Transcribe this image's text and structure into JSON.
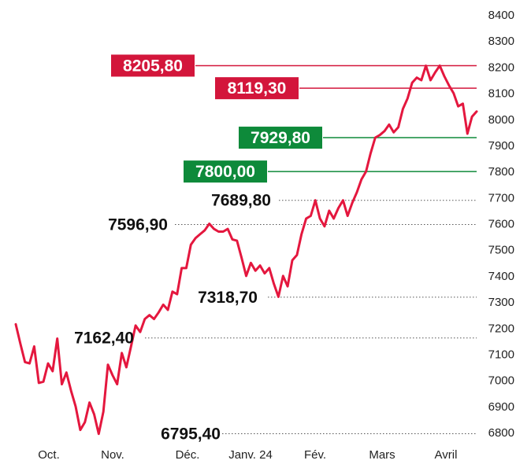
{
  "chart_data": {
    "type": "line",
    "title": "",
    "xlabel": "",
    "ylabel": "",
    "ylim": [
      6780,
      8420
    ],
    "y_ticks": [
      6800,
      6900,
      7000,
      7100,
      7200,
      7300,
      7400,
      7500,
      7600,
      7700,
      7800,
      7900,
      8000,
      8100,
      8200,
      8300,
      8400
    ],
    "x_tick_labels": [
      "Oct.",
      "Nov.",
      "Déc.",
      "Janv. 24",
      "Fév.",
      "Mars",
      "Avril"
    ],
    "grid": false,
    "line_color": "#e4173e",
    "series": [
      {
        "values": [
          7215,
          7140,
          7070,
          7065,
          7130,
          6990,
          6995,
          7065,
          7035,
          7160,
          6985,
          7030,
          6960,
          6900,
          6810,
          6840,
          6915,
          6870,
          6795,
          6880,
          7060,
          7020,
          6985,
          7105,
          7050,
          7130,
          7210,
          7185,
          7235,
          7250,
          7235,
          7260,
          7290,
          7270,
          7340,
          7330,
          7430,
          7430,
          7520,
          7545,
          7560,
          7575,
          7600,
          7580,
          7570,
          7570,
          7580,
          7540,
          7535,
          7470,
          7400,
          7450,
          7420,
          7440,
          7410,
          7430,
          7370,
          7320,
          7400,
          7360,
          7460,
          7480,
          7560,
          7620,
          7630,
          7689.8,
          7620,
          7590,
          7650,
          7620,
          7660,
          7689.8,
          7630,
          7680,
          7720,
          7770,
          7800,
          7870,
          7930,
          7940,
          7955,
          7980,
          7950,
          7970,
          8040,
          8080,
          8140,
          8160,
          8150,
          8205.8,
          8150,
          8180,
          8205.8,
          8165,
          8130,
          8100,
          8050,
          8060,
          7945,
          8010,
          8030
        ]
      }
    ],
    "annotations": [
      {
        "label": "8205,80",
        "value": 8205.8,
        "style": "badge",
        "color": "#d3163b"
      },
      {
        "label": "8119,30",
        "value": 8119.3,
        "style": "badge",
        "color": "#d3163b"
      },
      {
        "label": "7929,80",
        "value": 7929.8,
        "style": "badge",
        "color": "#0e8a3a"
      },
      {
        "label": "7800,00",
        "value": 7800.0,
        "style": "badge",
        "color": "#0e8a3a"
      },
      {
        "label": "7689,80",
        "value": 7689.8,
        "style": "text"
      },
      {
        "label": "7596,90",
        "value": 7596.9,
        "style": "text"
      },
      {
        "label": "7318,70",
        "value": 7318.7,
        "style": "text"
      },
      {
        "label": "7162,40",
        "value": 7162.4,
        "style": "text"
      },
      {
        "label": "6795,40",
        "value": 6795.4,
        "style": "text"
      }
    ]
  }
}
